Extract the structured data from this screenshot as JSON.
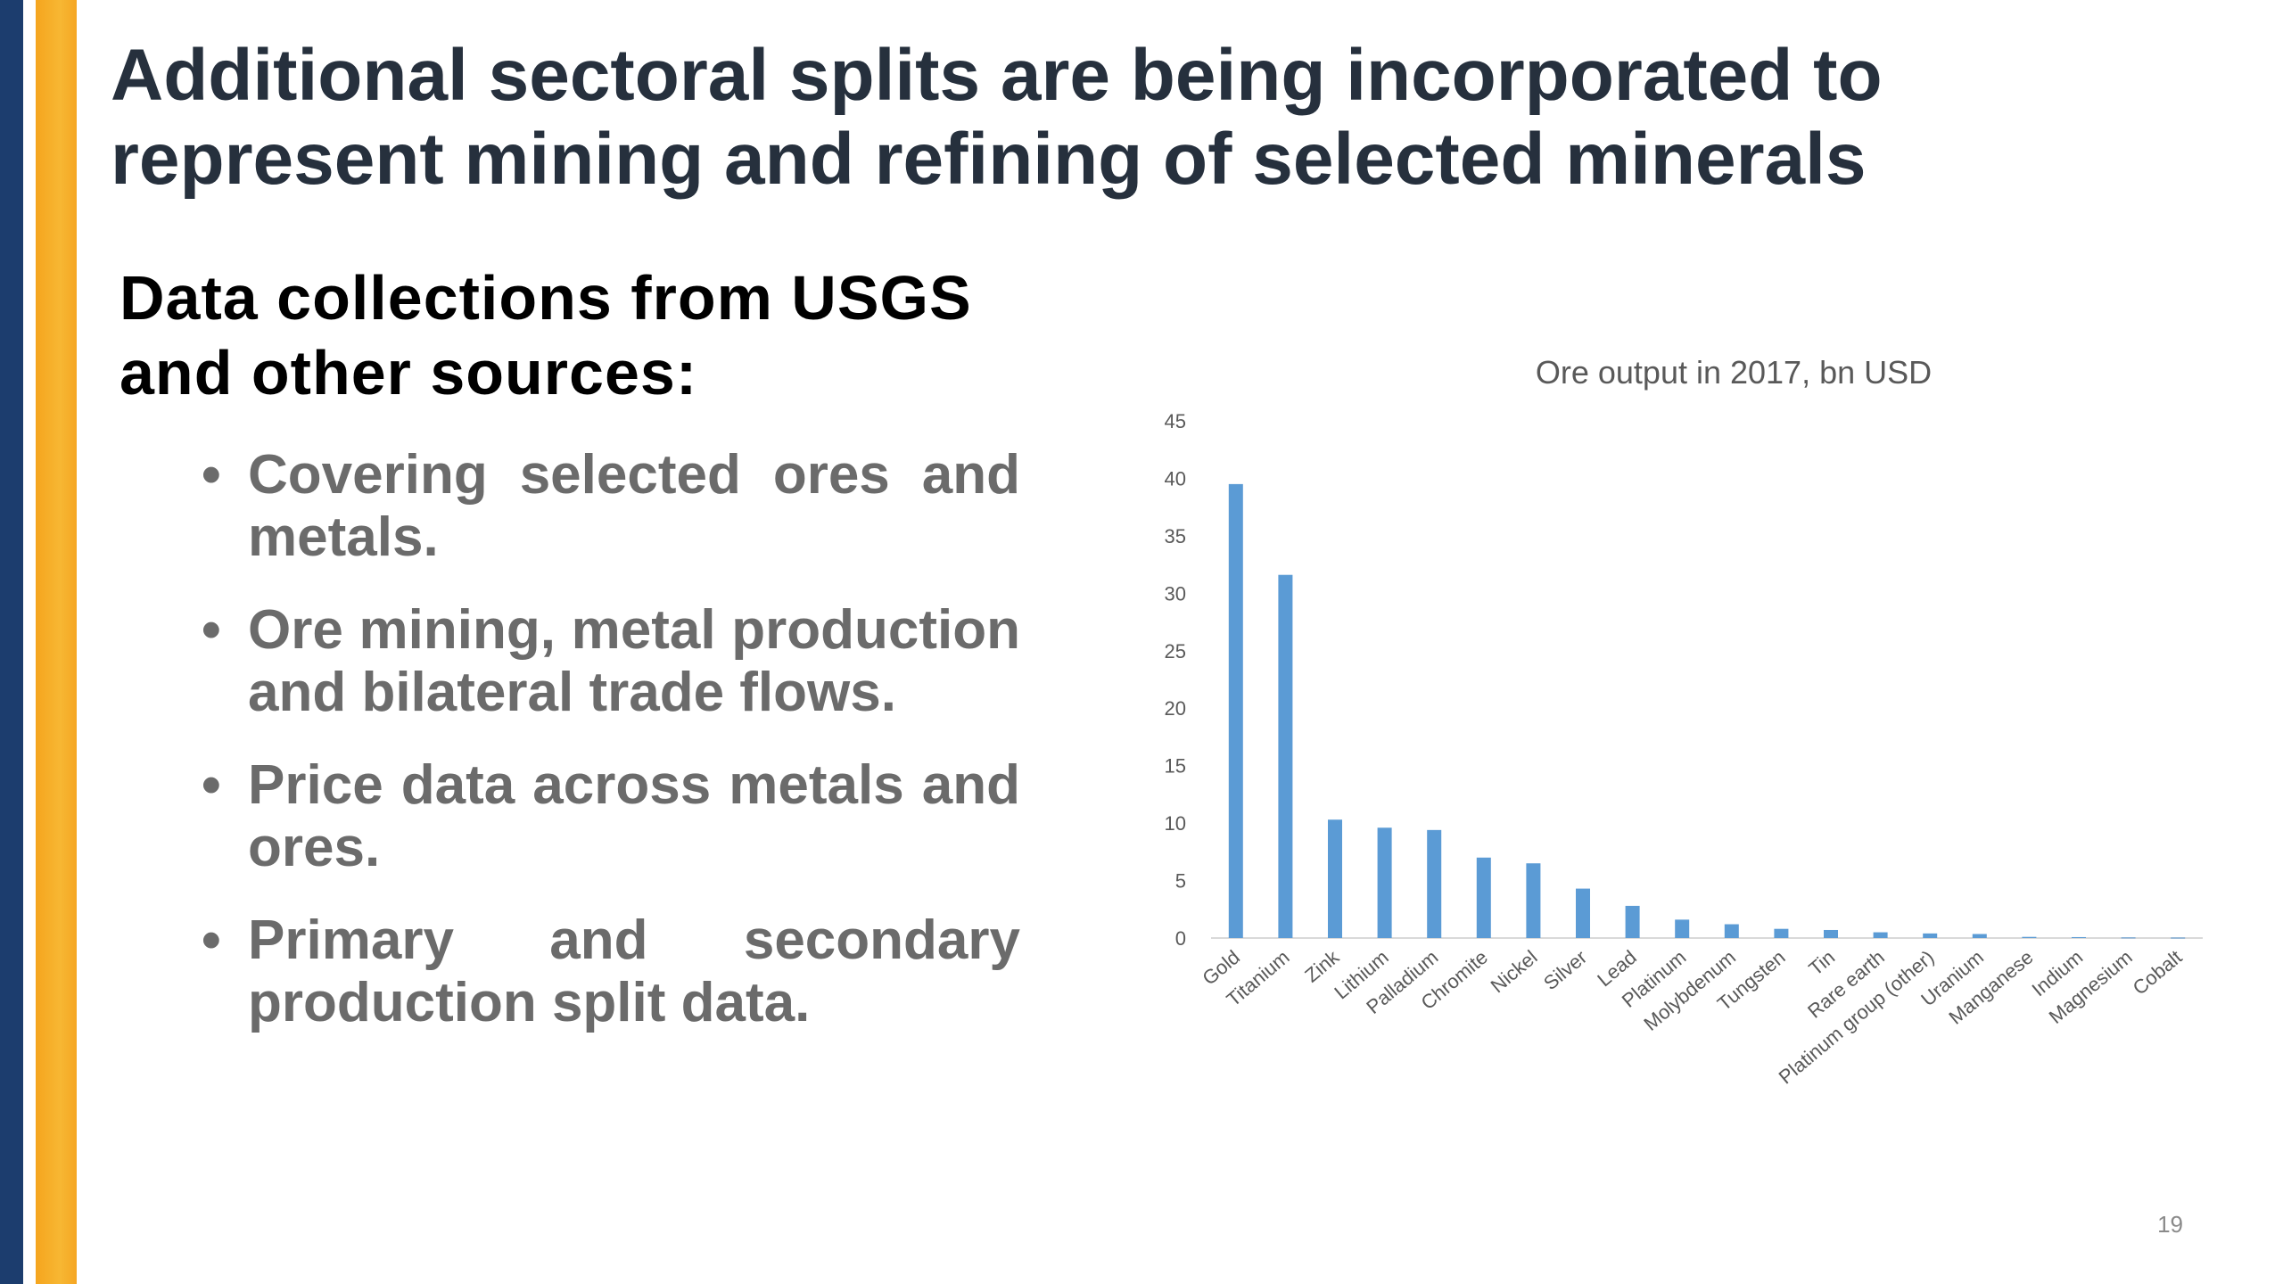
{
  "slide": {
    "title": "Additional sectoral splits are being incorporated to represent mining and refining of selected minerals",
    "subtitle": "Data collections from USGS and other sources:",
    "bullets": [
      "Covering selected ores and metals.",
      "Ore mining, metal production and bilateral trade flows.",
      "Price data across metals and ores.",
      "Primary and secondary production split data."
    ],
    "page_number": "19"
  },
  "colors": {
    "bar": "#5b9bd5",
    "title": "#26303d",
    "bullet": "#6b6b6b"
  },
  "chart_data": {
    "type": "bar",
    "title": "Ore output in 2017, bn USD",
    "xlabel": "",
    "ylabel": "",
    "ylim": [
      0,
      45
    ],
    "yticks": [
      0,
      5,
      10,
      15,
      20,
      25,
      30,
      35,
      40,
      45
    ],
    "grid": false,
    "categories": [
      "Gold",
      "Titanium",
      "Zink",
      "Lithium",
      "Palladium",
      "Chromite",
      "Nickel",
      "Silver",
      "Lead",
      "Platinum",
      "Molybdenum",
      "Tungsten",
      "Tin",
      "Rare earth",
      "Platinum group (other)",
      "Uranium",
      "Manganese",
      "Indium",
      "Magnesium",
      "Cobalt"
    ],
    "values": [
      39.5,
      31.6,
      10.3,
      9.6,
      9.4,
      7.0,
      6.5,
      4.3,
      2.8,
      1.6,
      1.2,
      0.8,
      0.7,
      0.5,
      0.4,
      0.35,
      0.1,
      0.08,
      0.05,
      0.04
    ]
  }
}
